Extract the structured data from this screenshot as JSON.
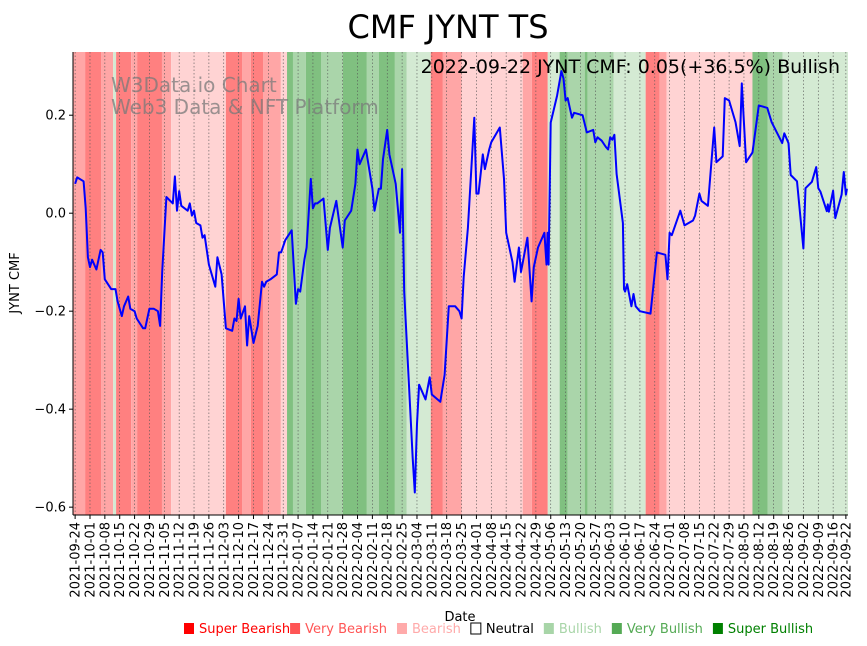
{
  "chart_data": {
    "type": "line",
    "title": "CMF JYNT TS",
    "annotation": "2022-09-22 JYNT CMF: 0.05(+36.5%) Bullish",
    "watermark": [
      "W3Data.io Chart",
      "Web3 Data & NFT Platform"
    ],
    "xlabel": "Date",
    "ylabel": "JYNT CMF",
    "x_start_date": "2021-09-24",
    "x_unit": "days since start",
    "xlim": [
      -1,
      364
    ],
    "ylim": [
      -0.616,
      0.329
    ],
    "yticks": [
      0.2,
      0.0,
      -0.2,
      -0.4,
      -0.6
    ],
    "ytick_labels": [
      "0.2",
      "0.0",
      "−0.2",
      "−0.4",
      "−0.6"
    ],
    "xtick_days": [
      0,
      7,
      14,
      21,
      28,
      35,
      42,
      49,
      56,
      63,
      70,
      77,
      84,
      91,
      98,
      105,
      112,
      119,
      126,
      133,
      140,
      147,
      154,
      161,
      168,
      175,
      182,
      189,
      196,
      203,
      210,
      217,
      224,
      231,
      238,
      245,
      252,
      259,
      266,
      273,
      280,
      287,
      294,
      301,
      308,
      315,
      322,
      329,
      336,
      343,
      350,
      357,
      363
    ],
    "xtick_labels": [
      "2021-09-24",
      "2021-10-01",
      "2021-10-08",
      "2021-10-15",
      "2021-10-22",
      "2021-10-29",
      "2021-11-05",
      "2021-11-12",
      "2021-11-19",
      "2021-11-26",
      "2021-12-03",
      "2021-12-10",
      "2021-12-17",
      "2021-12-24",
      "2021-12-31",
      "2022-01-07",
      "2022-01-14",
      "2022-01-21",
      "2022-01-28",
      "2022-02-04",
      "2022-02-11",
      "2022-02-18",
      "2022-02-25",
      "2022-03-04",
      "2022-03-11",
      "2022-03-18",
      "2022-03-25",
      "2022-04-01",
      "2022-04-08",
      "2022-04-15",
      "2022-04-22",
      "2022-04-29",
      "2022-05-06",
      "2022-05-13",
      "2022-05-20",
      "2022-05-27",
      "2022-06-03",
      "2022-06-10",
      "2022-06-17",
      "2022-06-24",
      "2022-07-01",
      "2022-07-08",
      "2022-07-15",
      "2022-07-22",
      "2022-07-29",
      "2022-08-05",
      "2022-08-12",
      "2022-08-19",
      "2022-08-26",
      "2022-09-02",
      "2022-09-09",
      "2022-09-16",
      "2022-09-22"
    ],
    "grid": "vertical dotted",
    "series": [
      {
        "name": "JYNT CMF",
        "color": "#0000ff",
        "points": [
          [
            0,
            0.06
          ],
          [
            1,
            0.073
          ],
          [
            4,
            0.065
          ],
          [
            5,
            0.01
          ],
          [
            6,
            -0.09
          ],
          [
            7,
            -0.11
          ],
          [
            8,
            -0.095
          ],
          [
            10,
            -0.115
          ],
          [
            12,
            -0.075
          ],
          [
            13,
            -0.08
          ],
          [
            14,
            -0.135
          ],
          [
            17,
            -0.155
          ],
          [
            19,
            -0.155
          ],
          [
            20,
            -0.18
          ],
          [
            22,
            -0.21
          ],
          [
            23,
            -0.19
          ],
          [
            25,
            -0.17
          ],
          [
            26,
            -0.195
          ],
          [
            28,
            -0.2
          ],
          [
            29,
            -0.215
          ],
          [
            32,
            -0.235
          ],
          [
            33,
            -0.235
          ],
          [
            34,
            -0.215
          ],
          [
            35,
            -0.195
          ],
          [
            37,
            -0.195
          ],
          [
            39,
            -0.2
          ],
          [
            40,
            -0.23
          ],
          [
            41,
            -0.12
          ],
          [
            43,
            0.033
          ],
          [
            46,
            0.02
          ],
          [
            47,
            0.075
          ],
          [
            48,
            0.005
          ],
          [
            49,
            0.045
          ],
          [
            50,
            0.015
          ],
          [
            53,
            0.005
          ],
          [
            54,
            0.02
          ],
          [
            55,
            -0.005
          ],
          [
            56,
            0.005
          ],
          [
            57,
            -0.02
          ],
          [
            59,
            -0.025
          ],
          [
            60,
            -0.05
          ],
          [
            61,
            -0.045
          ],
          [
            63,
            -0.105
          ],
          [
            66,
            -0.15
          ],
          [
            67,
            -0.09
          ],
          [
            69,
            -0.125
          ],
          [
            71,
            -0.235
          ],
          [
            74,
            -0.24
          ],
          [
            75,
            -0.215
          ],
          [
            76,
            -0.22
          ],
          [
            77,
            -0.175
          ],
          [
            78,
            -0.215
          ],
          [
            80,
            -0.19
          ],
          [
            81,
            -0.27
          ],
          [
            82,
            -0.21
          ],
          [
            84,
            -0.265
          ],
          [
            86,
            -0.23
          ],
          [
            88,
            -0.14
          ],
          [
            89,
            -0.15
          ],
          [
            90,
            -0.14
          ],
          [
            92,
            -0.135
          ],
          [
            95,
            -0.125
          ],
          [
            96,
            -0.08
          ],
          [
            97,
            -0.08
          ],
          [
            99,
            -0.055
          ],
          [
            102,
            -0.035
          ],
          [
            104,
            -0.185
          ],
          [
            105,
            -0.155
          ],
          [
            106,
            -0.16
          ],
          [
            108,
            -0.095
          ],
          [
            109,
            -0.07
          ],
          [
            111,
            0.07
          ],
          [
            112,
            0.01
          ],
          [
            113,
            0.02
          ],
          [
            114,
            0.02
          ],
          [
            117,
            0.03
          ],
          [
            119,
            -0.075
          ],
          [
            120,
            -0.03
          ],
          [
            123,
            0.025
          ],
          [
            126,
            -0.07
          ],
          [
            127,
            -0.015
          ],
          [
            130,
            0.005
          ],
          [
            132,
            0.06
          ],
          [
            133,
            0.13
          ],
          [
            134,
            0.1
          ],
          [
            137,
            0.13
          ],
          [
            140,
            0.05
          ],
          [
            141,
            0.005
          ],
          [
            143,
            0.05
          ],
          [
            144,
            0.05
          ],
          [
            145,
            0.11
          ],
          [
            147,
            0.17
          ],
          [
            148,
            0.12
          ],
          [
            151,
            0.06
          ],
          [
            153,
            -0.04
          ],
          [
            154,
            0.09
          ],
          [
            155,
            -0.16
          ],
          [
            159,
            -0.5
          ],
          [
            160,
            -0.57
          ],
          [
            161,
            -0.43
          ],
          [
            162,
            -0.35
          ],
          [
            165,
            -0.38
          ],
          [
            167,
            -0.335
          ],
          [
            168,
            -0.37
          ],
          [
            172,
            -0.385
          ],
          [
            174,
            -0.33
          ],
          [
            176,
            -0.19
          ],
          [
            179,
            -0.19
          ],
          [
            181,
            -0.2
          ],
          [
            182,
            -0.215
          ],
          [
            183,
            -0.13
          ],
          [
            185,
            -0.03
          ],
          [
            188,
            0.195
          ],
          [
            189,
            0.04
          ],
          [
            190,
            0.04
          ],
          [
            192,
            0.12
          ],
          [
            193,
            0.09
          ],
          [
            195,
            0.13
          ],
          [
            196,
            0.145
          ],
          [
            200,
            0.175
          ],
          [
            202,
            0.07
          ],
          [
            203,
            -0.04
          ],
          [
            206,
            -0.1
          ],
          [
            207,
            -0.14
          ],
          [
            209,
            -0.07
          ],
          [
            210,
            -0.12
          ],
          [
            213,
            -0.05
          ],
          [
            215,
            -0.18
          ],
          [
            216,
            -0.11
          ],
          [
            218,
            -0.07
          ],
          [
            221,
            -0.04
          ],
          [
            222,
            -0.105
          ],
          [
            222.5,
            -0.04
          ],
          [
            223,
            -0.105
          ],
          [
            224,
            0.185
          ],
          [
            227,
            0.24
          ],
          [
            229,
            0.29
          ],
          [
            230,
            0.275
          ],
          [
            231,
            0.23
          ],
          [
            232,
            0.235
          ],
          [
            233,
            0.215
          ],
          [
            234,
            0.195
          ],
          [
            235,
            0.205
          ],
          [
            239,
            0.2
          ],
          [
            241,
            0.165
          ],
          [
            244,
            0.17
          ],
          [
            245,
            0.145
          ],
          [
            246,
            0.155
          ],
          [
            248,
            0.148
          ],
          [
            250,
            0.135
          ],
          [
            251,
            0.13
          ],
          [
            252,
            0.155
          ],
          [
            253,
            0.15
          ],
          [
            254,
            0.16
          ],
          [
            255,
            0.08
          ],
          [
            258,
            -0.02
          ],
          [
            258.5,
            -0.155
          ],
          [
            259,
            -0.16
          ],
          [
            260,
            -0.145
          ],
          [
            262,
            -0.19
          ],
          [
            263,
            -0.165
          ],
          [
            264,
            -0.19
          ],
          [
            266,
            -0.2
          ],
          [
            271,
            -0.205
          ],
          [
            274,
            -0.08
          ],
          [
            278,
            -0.085
          ],
          [
            279,
            -0.135
          ],
          [
            280,
            -0.04
          ],
          [
            281,
            -0.045
          ],
          [
            285,
            0.005
          ],
          [
            287,
            -0.025
          ],
          [
            291,
            -0.015
          ],
          [
            292,
            -0.005
          ],
          [
            294,
            0.04
          ],
          [
            295,
            0.025
          ],
          [
            298,
            0.015
          ],
          [
            301,
            0.175
          ],
          [
            302,
            0.104
          ],
          [
            305,
            0.116
          ],
          [
            306,
            0.235
          ],
          [
            308,
            0.23
          ],
          [
            311,
            0.186
          ],
          [
            313,
            0.137
          ],
          [
            314,
            0.265
          ],
          [
            316,
            0.104
          ],
          [
            319,
            0.124
          ],
          [
            322,
            0.22
          ],
          [
            326,
            0.215
          ],
          [
            328,
            0.186
          ],
          [
            333,
            0.143
          ],
          [
            334,
            0.163
          ],
          [
            336,
            0.143
          ],
          [
            337,
            0.078
          ],
          [
            340,
            0.065
          ],
          [
            343,
            -0.072
          ],
          [
            344,
            0.051
          ],
          [
            347,
            0.064
          ],
          [
            349,
            0.094
          ],
          [
            350,
            0.051
          ],
          [
            351,
            0.044
          ],
          [
            354,
            0.004
          ],
          [
            354.5,
            0.018
          ],
          [
            355,
            0.003
          ],
          [
            357,
            0.046
          ],
          [
            358,
            -0.01
          ],
          [
            361,
            0.038
          ],
          [
            362,
            0.084
          ],
          [
            363,
            0.038
          ],
          [
            363.5,
            0.05
          ]
        ]
      }
    ],
    "sentiment_bands": [
      [
        -1,
        4.7,
        -2
      ],
      [
        4.7,
        12.2,
        -3
      ],
      [
        12.2,
        17.9,
        -2
      ],
      [
        17.9,
        19.3,
        1
      ],
      [
        19.3,
        26.4,
        -3
      ],
      [
        26.4,
        29.2,
        -2
      ],
      [
        29.2,
        40.9,
        -3
      ],
      [
        40.9,
        45.2,
        -2
      ],
      [
        45.2,
        71,
        -1
      ],
      [
        71,
        78.6,
        -3
      ],
      [
        78.6,
        82.8,
        -2
      ],
      [
        82.8,
        88.5,
        -3
      ],
      [
        88.5,
        96.9,
        -2
      ],
      [
        96.9,
        99.8,
        -1
      ],
      [
        99.8,
        102.6,
        3
      ],
      [
        102.6,
        108.7,
        2
      ],
      [
        108.7,
        115.8,
        3
      ],
      [
        115.8,
        126.1,
        2
      ],
      [
        126.1,
        137.4,
        3
      ],
      [
        137.4,
        143.1,
        2
      ],
      [
        143.1,
        150.6,
        3
      ],
      [
        150.6,
        156.2,
        2
      ],
      [
        156.2,
        167.5,
        1
      ],
      [
        167.5,
        173.2,
        -3
      ],
      [
        173.2,
        182.1,
        -2
      ],
      [
        182.1,
        210.8,
        -1
      ],
      [
        210.8,
        215.1,
        -2
      ],
      [
        215.1,
        222.6,
        -3
      ],
      [
        222.6,
        228.2,
        1
      ],
      [
        228.2,
        232,
        3
      ],
      [
        232,
        240,
        2
      ],
      [
        240,
        241.4,
        3
      ],
      [
        241.4,
        253.6,
        2
      ],
      [
        253.6,
        268.7,
        1
      ],
      [
        268.7,
        275.3,
        -3
      ],
      [
        275.3,
        278.6,
        -2
      ],
      [
        278.6,
        319,
        -1
      ],
      [
        319,
        326.1,
        3
      ],
      [
        326.1,
        333.2,
        2
      ],
      [
        333.2,
        364,
        1
      ]
    ],
    "band_colors": {
      "-3": "#ff8080",
      "-2": "#ffa6a6",
      "-1": "#ffd3d3",
      "1": "#d4ead3",
      "2": "#aad5aa",
      "3": "#80c080"
    },
    "legend": {
      "placement": "bottom-right",
      "items": [
        {
          "label": "Super Bearish",
          "color": "#ff0000",
          "text_color": "#ff0000",
          "filled": true
        },
        {
          "label": "Very Bearish",
          "color": "#ff5555",
          "text_color": "#ff5555",
          "filled": true
        },
        {
          "label": "Bearish",
          "color": "#ffaaaa",
          "text_color": "#ffaaaa",
          "filled": true
        },
        {
          "label": "Neutral",
          "color": "#000000",
          "text_color": "#000000",
          "filled": false
        },
        {
          "label": "Bullish",
          "color": "#a8d5a8",
          "text_color": "#a8d5a8",
          "filled": true
        },
        {
          "label": "Very Bullish",
          "color": "#55aa55",
          "text_color": "#55aa55",
          "filled": true
        },
        {
          "label": "Super Bullish",
          "color": "#008000",
          "text_color": "#008000",
          "filled": true
        }
      ]
    }
  }
}
